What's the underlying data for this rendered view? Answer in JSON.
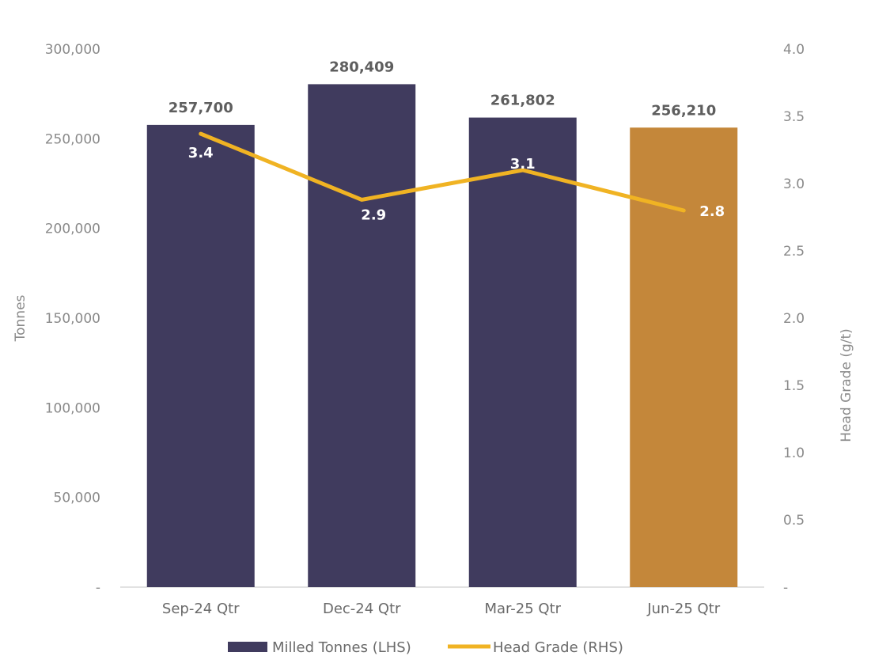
{
  "chart_data": {
    "type": "bar",
    "categories": [
      "Sep-24 Qtr",
      "Dec-24 Qtr",
      "Mar-25 Qtr",
      "Jun-25 Qtr"
    ],
    "series": [
      {
        "name": "Milled Tonnes (LHS)",
        "type": "bar",
        "axis": "left",
        "values": [
          257700,
          280409,
          261802,
          256210
        ],
        "labels": [
          "257,700",
          "280,409",
          "261,802",
          "256,210"
        ],
        "colors": [
          "#403b5e",
          "#403b5e",
          "#403b5e",
          "#c4873a"
        ]
      },
      {
        "name": "Head Grade (RHS)",
        "type": "line",
        "axis": "right",
        "values": [
          3.37,
          2.88,
          3.1,
          2.8
        ],
        "labels": [
          "3.4",
          "2.9",
          "3.1",
          "2.8"
        ],
        "color": "#f0b323"
      }
    ],
    "ylabel": "Tonnes",
    "y2label": "Head Grade (g/t)",
    "ylim": [
      0,
      300000
    ],
    "y2lim": [
      0,
      4.0
    ],
    "yticks": [
      "-",
      "50,000",
      "100,000",
      "150,000",
      "200,000",
      "250,000",
      "300,000"
    ],
    "y2ticks": [
      "-",
      "0.5",
      "1.0",
      "1.5",
      "2.0",
      "2.5",
      "3.0",
      "3.5",
      "4.0"
    ],
    "grid": false,
    "legend_position": "bottom"
  }
}
